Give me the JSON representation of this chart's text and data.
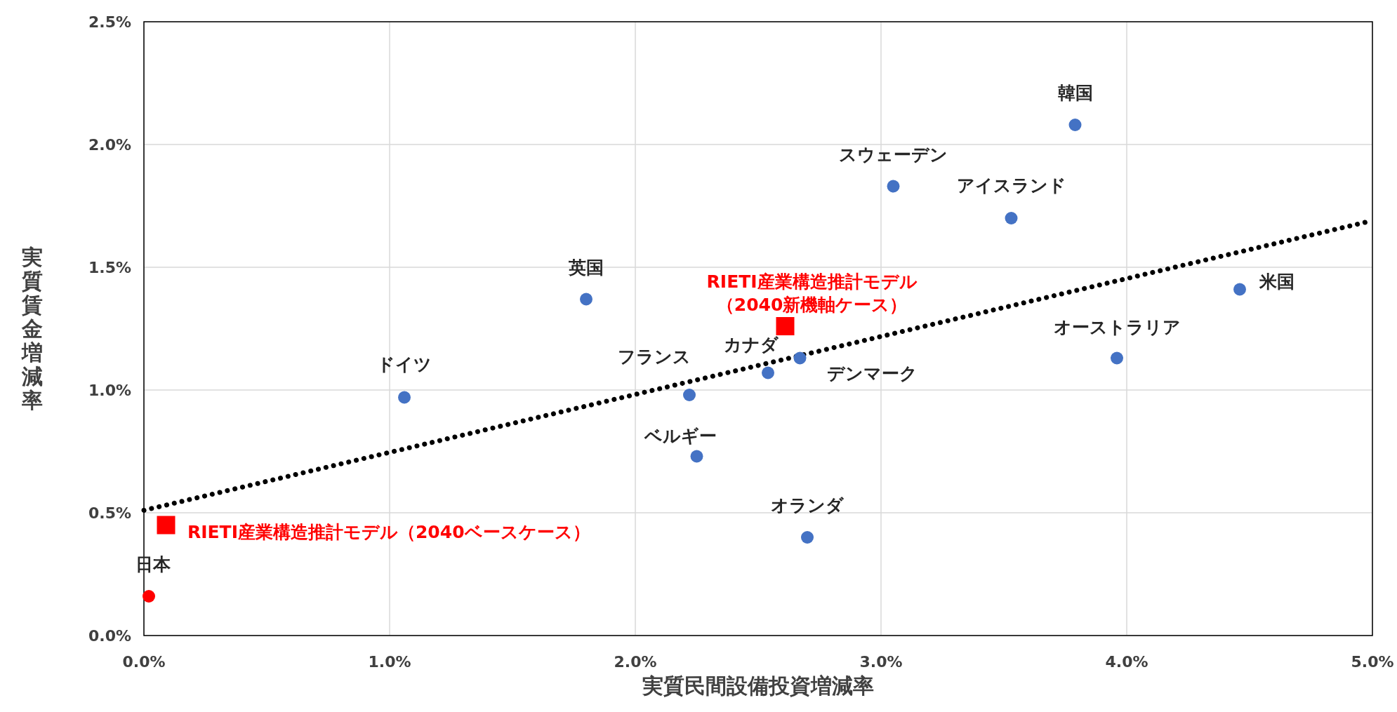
{
  "chart_data": {
    "type": "scatter",
    "xlabel": "実質民間設備投資増減率",
    "ylabel": "実質賃金増減率",
    "xlim": [
      0,
      5
    ],
    "ylim": [
      0,
      2.5
    ],
    "xticks": [
      {
        "value": 0,
        "label": "0.0%"
      },
      {
        "value": 1,
        "label": "1.0%"
      },
      {
        "value": 2,
        "label": "2.0%"
      },
      {
        "value": 3,
        "label": "3.0%"
      },
      {
        "value": 4,
        "label": "4.0%"
      },
      {
        "value": 5,
        "label": "5.0%"
      }
    ],
    "yticks": [
      {
        "value": 0,
        "label": "0.0%"
      },
      {
        "value": 0.5,
        "label": "0.5%"
      },
      {
        "value": 1,
        "label": "1.0%"
      },
      {
        "value": 1.5,
        "label": "1.5%"
      },
      {
        "value": 2,
        "label": "2.0%"
      },
      {
        "value": 2.5,
        "label": "2.5%"
      }
    ],
    "grid": true,
    "series": [
      {
        "type": "line",
        "color": "#000000",
        "line_style": "dotted",
        "marker": "none",
        "x": [
          0,
          5
        ],
        "values": [
          0.51,
          1.69
        ]
      },
      {
        "type": "scatter",
        "color": "#4472c4",
        "marker": "circle",
        "x": [
          3.79,
          3.05,
          3.53,
          4.46,
          3.96,
          1.8,
          1.06,
          2.22,
          2.54,
          2.67,
          2.25,
          2.7
        ],
        "values": [
          2.08,
          1.83,
          1.7,
          1.41,
          1.13,
          1.37,
          0.97,
          0.98,
          1.07,
          1.13,
          0.73,
          0.4
        ]
      },
      {
        "type": "scatter",
        "color": "#ff0000",
        "marker": "circle",
        "x": [
          0.02
        ],
        "values": [
          0.16
        ]
      },
      {
        "type": "scatter",
        "color": "#ff0000",
        "marker": "square",
        "x": [
          0.09,
          2.61
        ],
        "values": [
          0.45,
          1.26
        ]
      }
    ],
    "annotations": [
      {
        "text": "韓国",
        "x": 3.79,
        "y": 2.08
      },
      {
        "text": "スウェーデン",
        "x": 3.05,
        "y": 1.83
      },
      {
        "text": "アイスランド",
        "x": 3.53,
        "y": 1.7
      },
      {
        "text": "米国",
        "x": 4.46,
        "y": 1.41
      },
      {
        "text": "オーストラリア",
        "x": 3.96,
        "y": 1.13
      },
      {
        "text": "英国",
        "x": 1.8,
        "y": 1.37
      },
      {
        "text": "ドイツ",
        "x": 1.06,
        "y": 0.97
      },
      {
        "text": "フランス",
        "x": 2.22,
        "y": 0.98
      },
      {
        "text": "カナダ",
        "x": 2.54,
        "y": 1.07
      },
      {
        "text": "デンマーク",
        "x": 2.67,
        "y": 1.13
      },
      {
        "text": "ベルギー",
        "x": 2.25,
        "y": 0.73
      },
      {
        "text": "オランダ",
        "x": 2.7,
        "y": 0.4
      },
      {
        "text": "日本",
        "x": 0.02,
        "y": 0.16
      },
      {
        "text": "RIETI産業構造推計モデル（2040ベースケース）",
        "x": 0.09,
        "y": 0.45
      },
      {
        "text": "RIETI産業構造推計モデル（2040新機軸ケース）",
        "x": 2.61,
        "y": 1.26
      }
    ]
  }
}
